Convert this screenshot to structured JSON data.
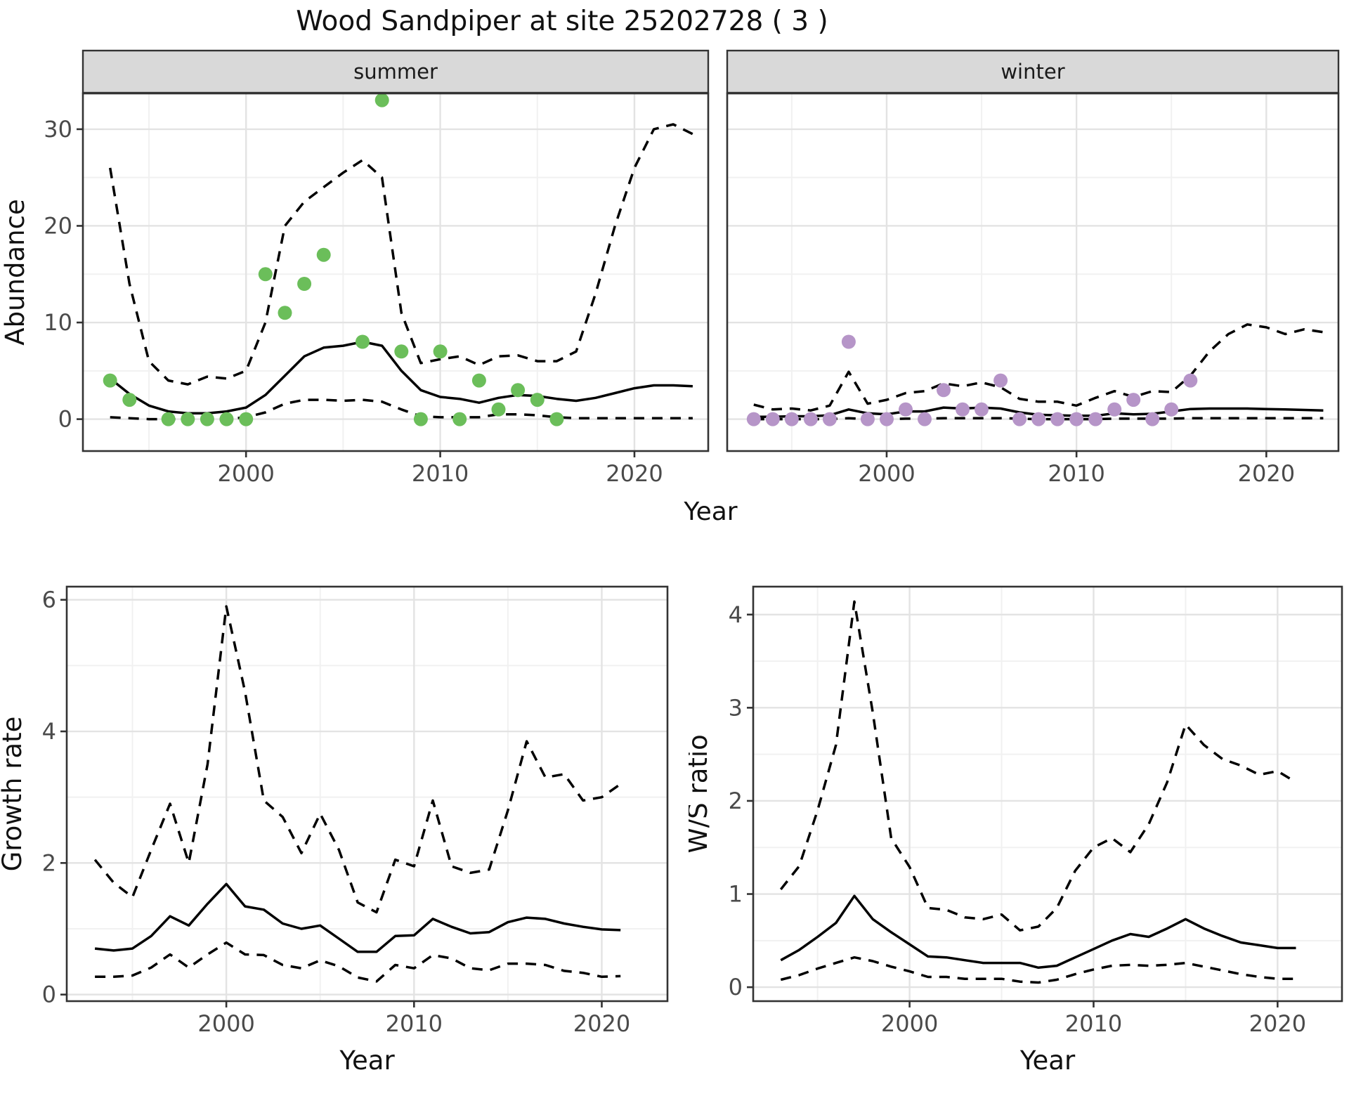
{
  "title": "Wood Sandpiper at site 25202728 ( 3 )",
  "labels": {
    "top_xlabel": "Year"
  },
  "colors": {
    "summer_point": "#6BBE5A",
    "winter_point": "#B695C8",
    "line": "#000000",
    "grid_major": "#E3E3E3",
    "grid_minor": "#F1F1F1",
    "strip_bg": "#D9D9D9",
    "panel_border": "#333333",
    "tick_text": "#4A4A4A",
    "axis_title": "#111111"
  },
  "chart_data": [
    {
      "id": "abundance_summer",
      "type": "line",
      "facet_label": "summer",
      "ylabel": "Abundance",
      "xlabel": null,
      "xlim": [
        1991.6,
        2023.8
      ],
      "ylim": [
        -3.3,
        33.7
      ],
      "x_ticks": [
        2000,
        2010,
        2020
      ],
      "x_minor": [
        1995,
        2005,
        2015
      ],
      "y_ticks": [
        0,
        10,
        20,
        30
      ],
      "y_minor": [
        5,
        15,
        25
      ],
      "show_y_tick_labels": true,
      "legend": "none",
      "series": {
        "fit": {
          "years": [
            1993,
            1994,
            1995,
            1996,
            1997,
            1998,
            1999,
            2000,
            2001,
            2002,
            2003,
            2004,
            2005,
            2006,
            2007,
            2008,
            2009,
            2010,
            2011,
            2012,
            2013,
            2014,
            2015,
            2016,
            2017,
            2018,
            2019,
            2020,
            2021,
            2022,
            2023
          ],
          "values": [
            4.2,
            2.6,
            1.4,
            0.8,
            0.6,
            0.6,
            0.8,
            1.2,
            2.5,
            4.5,
            6.5,
            7.4,
            7.6,
            8.0,
            7.6,
            5.0,
            3.0,
            2.3,
            2.1,
            1.7,
            2.2,
            2.5,
            2.4,
            2.1,
            1.9,
            2.2,
            2.7,
            3.2,
            3.5,
            3.5,
            3.4
          ]
        },
        "ci_upper": {
          "years": [
            1993,
            1994,
            1995,
            1996,
            1997,
            1998,
            1999,
            2000,
            2001,
            2002,
            2003,
            2004,
            2005,
            2006,
            2007,
            2008,
            2009,
            2010,
            2011,
            2012,
            2013,
            2014,
            2015,
            2016,
            2017,
            2018,
            2019,
            2020,
            2021,
            2022,
            2023
          ],
          "values": [
            26,
            14,
            6,
            4,
            3.6,
            4.4,
            4.2,
            5,
            10,
            20,
            22.5,
            24,
            25.5,
            26.8,
            25,
            11,
            5.8,
            6.2,
            6.5,
            5.6,
            6.5,
            6.6,
            6.0,
            6.0,
            7.0,
            13,
            20,
            26,
            30,
            30.5,
            29.5
          ]
        },
        "ci_lower": {
          "years": [
            1993,
            1994,
            1995,
            1996,
            1997,
            1998,
            1999,
            2000,
            2001,
            2002,
            2003,
            2004,
            2005,
            2006,
            2007,
            2008,
            2009,
            2010,
            2011,
            2012,
            2013,
            2014,
            2015,
            2016,
            2017,
            2018,
            2019,
            2020,
            2021,
            2022,
            2023
          ],
          "values": [
            0.2,
            0.1,
            0,
            0,
            0,
            0,
            0,
            0.2,
            0.7,
            1.6,
            2.0,
            2.0,
            1.9,
            2.0,
            1.8,
            1.0,
            0.3,
            0.2,
            0.2,
            0.2,
            0.5,
            0.5,
            0.4,
            0.2,
            0.1,
            0.1,
            0.1,
            0.1,
            0.1,
            0.1,
            0.1
          ]
        }
      },
      "points": {
        "color_key": "summer_point",
        "years": [
          1993,
          1994,
          1996,
          1997,
          1998,
          1999,
          2000,
          2001,
          2002,
          2003,
          2004,
          2006,
          2007,
          2008,
          2009,
          2010,
          2011,
          2012,
          2013,
          2014,
          2015,
          2016
        ],
        "values": [
          4,
          2,
          0,
          0,
          0,
          0,
          0,
          15,
          11,
          14,
          17,
          8,
          33,
          7,
          0,
          7,
          0,
          4,
          1,
          3,
          2,
          0
        ]
      }
    },
    {
      "id": "abundance_winter",
      "type": "line",
      "facet_label": "winter",
      "ylabel": null,
      "xlabel": null,
      "xlim": [
        1991.6,
        2023.8
      ],
      "ylim": [
        -3.3,
        33.7
      ],
      "x_ticks": [
        2000,
        2010,
        2020
      ],
      "x_minor": [
        1995,
        2005,
        2015
      ],
      "y_ticks": [
        0,
        10,
        20,
        30
      ],
      "y_minor": [
        5,
        15,
        25
      ],
      "show_y_tick_labels": false,
      "legend": "none",
      "series": {
        "fit": {
          "years": [
            1993,
            1994,
            1995,
            1996,
            1997,
            1998,
            1999,
            2000,
            2001,
            2002,
            2003,
            2004,
            2005,
            2006,
            2007,
            2008,
            2009,
            2010,
            2011,
            2012,
            2013,
            2014,
            2015,
            2016,
            2017,
            2018,
            2019,
            2020,
            2021,
            2022,
            2023
          ],
          "values": [
            0.25,
            0.25,
            0.3,
            0.3,
            0.4,
            1.0,
            0.6,
            0.5,
            0.8,
            0.8,
            1.2,
            1.1,
            1.2,
            1.1,
            0.7,
            0.45,
            0.4,
            0.35,
            0.35,
            0.6,
            0.5,
            0.55,
            0.8,
            1.05,
            1.1,
            1.1,
            1.1,
            1.05,
            1.0,
            0.95,
            0.9
          ]
        },
        "ci_upper": {
          "years": [
            1993,
            1994,
            1995,
            1996,
            1997,
            1998,
            1999,
            2000,
            2001,
            2002,
            2003,
            2004,
            2005,
            2006,
            2007,
            2008,
            2009,
            2010,
            2011,
            2012,
            2013,
            2014,
            2015,
            2016,
            2017,
            2018,
            2019,
            2020,
            2021,
            2022,
            2023
          ],
          "values": [
            1.5,
            1.0,
            1.1,
            0.9,
            1.4,
            4.9,
            1.6,
            2.0,
            2.7,
            2.9,
            3.7,
            3.4,
            3.8,
            3.3,
            2.1,
            1.8,
            1.8,
            1.4,
            2.2,
            2.9,
            2.3,
            2.9,
            2.8,
            4.5,
            7.0,
            8.8,
            9.8,
            9.5,
            8.8,
            9.3,
            9.0
          ]
        },
        "ci_lower": {
          "years": [
            1993,
            1994,
            1995,
            1996,
            1997,
            1998,
            1999,
            2000,
            2001,
            2002,
            2003,
            2004,
            2005,
            2006,
            2007,
            2008,
            2009,
            2010,
            2011,
            2012,
            2013,
            2014,
            2015,
            2016,
            2017,
            2018,
            2019,
            2020,
            2021,
            2022,
            2023
          ],
          "values": [
            0,
            0,
            0,
            0,
            0,
            0.1,
            0,
            0,
            0.05,
            0.05,
            0.1,
            0.1,
            0.1,
            0.1,
            0.05,
            0,
            0,
            0,
            0,
            0.05,
            0.05,
            0.05,
            0.05,
            0.1,
            0.1,
            0.1,
            0.1,
            0.1,
            0.1,
            0.1,
            0.1
          ]
        }
      },
      "points": {
        "color_key": "winter_point",
        "years": [
          1993,
          1994,
          1995,
          1996,
          1997,
          1998,
          1999,
          2000,
          2001,
          2002,
          2003,
          2004,
          2005,
          2006,
          2007,
          2008,
          2009,
          2010,
          2011,
          2012,
          2013,
          2014,
          2015,
          2016
        ],
        "values": [
          0,
          0,
          0,
          0,
          0,
          8,
          0,
          0,
          1,
          0,
          3,
          1,
          1,
          4,
          0,
          0,
          0,
          0,
          0,
          1,
          2,
          0,
          1,
          4
        ]
      }
    },
    {
      "id": "growth_rate",
      "type": "line",
      "facet_label": null,
      "ylabel": "Growth rate",
      "xlabel": "Year",
      "xlim": [
        1991.5,
        2023.5
      ],
      "ylim": [
        -0.1,
        6.2
      ],
      "x_ticks": [
        2000,
        2010,
        2020
      ],
      "x_minor": [
        1995,
        2005,
        2015
      ],
      "y_ticks": [
        0,
        2,
        4,
        6
      ],
      "y_minor": [
        1,
        3,
        5
      ],
      "show_y_tick_labels": true,
      "legend": "none",
      "series": {
        "fit": {
          "years": [
            1993,
            1994,
            1995,
            1996,
            1997,
            1998,
            1999,
            2000,
            2001,
            2002,
            2003,
            2004,
            2005,
            2006,
            2007,
            2008,
            2009,
            2010,
            2011,
            2012,
            2013,
            2014,
            2015,
            2016,
            2017,
            2018,
            2019,
            2020,
            2021
          ],
          "values": [
            0.7,
            0.67,
            0.7,
            0.89,
            1.19,
            1.05,
            1.38,
            1.68,
            1.34,
            1.29,
            1.08,
            1.0,
            1.05,
            0.85,
            0.65,
            0.65,
            0.89,
            0.9,
            1.15,
            1.03,
            0.93,
            0.95,
            1.1,
            1.17,
            1.15,
            1.08,
            1.03,
            0.99,
            0.98
          ]
        },
        "ci_upper": {
          "years": [
            1993,
            1994,
            1995,
            1996,
            1997,
            1998,
            1999,
            2000,
            2001,
            2002,
            2003,
            2004,
            2005,
            2006,
            2007,
            2008,
            2009,
            2010,
            2011,
            2012,
            2013,
            2014,
            2015,
            2016,
            2017,
            2018,
            2019,
            2020,
            2021
          ],
          "values": [
            2.05,
            1.7,
            1.48,
            2.2,
            2.9,
            2.0,
            3.5,
            5.9,
            4.6,
            2.95,
            2.7,
            2.15,
            2.75,
            2.2,
            1.4,
            1.25,
            2.05,
            1.95,
            2.95,
            1.95,
            1.85,
            1.9,
            2.8,
            3.85,
            3.3,
            3.35,
            2.95,
            3.0,
            3.2
          ]
        },
        "ci_lower": {
          "years": [
            1993,
            1994,
            1995,
            1996,
            1997,
            1998,
            1999,
            2000,
            2001,
            2002,
            2003,
            2004,
            2005,
            2006,
            2007,
            2008,
            2009,
            2010,
            2011,
            2012,
            2013,
            2014,
            2015,
            2016,
            2017,
            2018,
            2019,
            2020,
            2021
          ],
          "values": [
            0.27,
            0.27,
            0.29,
            0.41,
            0.61,
            0.41,
            0.61,
            0.79,
            0.61,
            0.6,
            0.45,
            0.4,
            0.52,
            0.43,
            0.26,
            0.2,
            0.45,
            0.4,
            0.6,
            0.55,
            0.4,
            0.37,
            0.47,
            0.47,
            0.45,
            0.36,
            0.33,
            0.27,
            0.28
          ]
        }
      },
      "points": null
    },
    {
      "id": "ws_ratio",
      "type": "line",
      "facet_label": null,
      "ylabel": "W/S ratio",
      "xlabel": "Year",
      "xlim": [
        1991.5,
        2023.5
      ],
      "ylim": [
        -0.15,
        4.3
      ],
      "x_ticks": [
        2000,
        2010,
        2020
      ],
      "x_minor": [
        1995,
        2005,
        2015
      ],
      "y_ticks": [
        0,
        1,
        2,
        3,
        4
      ],
      "y_minor": [
        0.5,
        1.5,
        2.5,
        3.5
      ],
      "show_y_tick_labels": true,
      "legend": "none",
      "series": {
        "fit": {
          "years": [
            1993,
            1994,
            1995,
            1996,
            1997,
            1998,
            1999,
            2000,
            2001,
            2002,
            2003,
            2004,
            2005,
            2006,
            2007,
            2008,
            2009,
            2010,
            2011,
            2012,
            2013,
            2014,
            2015,
            2016,
            2017,
            2018,
            2019,
            2020,
            2021
          ],
          "values": [
            0.29,
            0.4,
            0.54,
            0.69,
            0.98,
            0.73,
            0.59,
            0.46,
            0.33,
            0.32,
            0.29,
            0.26,
            0.26,
            0.26,
            0.21,
            0.23,
            0.32,
            0.41,
            0.5,
            0.57,
            0.54,
            0.63,
            0.73,
            0.63,
            0.55,
            0.48,
            0.45,
            0.42,
            0.42
          ]
        },
        "ci_upper": {
          "years": [
            1993,
            1994,
            1995,
            1996,
            1997,
            1998,
            1999,
            2000,
            2001,
            2002,
            2003,
            2004,
            2005,
            2006,
            2007,
            2008,
            2009,
            2010,
            2011,
            2012,
            2013,
            2014,
            2015,
            2016,
            2017,
            2018,
            2019,
            2020,
            2021
          ],
          "values": [
            1.05,
            1.3,
            1.9,
            2.6,
            4.14,
            2.95,
            1.6,
            1.29,
            0.85,
            0.83,
            0.75,
            0.73,
            0.78,
            0.61,
            0.65,
            0.85,
            1.25,
            1.5,
            1.6,
            1.45,
            1.75,
            2.2,
            2.82,
            2.6,
            2.45,
            2.38,
            2.28,
            2.32,
            2.2
          ]
        },
        "ci_lower": {
          "years": [
            1993,
            1994,
            1995,
            1996,
            1997,
            1998,
            1999,
            2000,
            2001,
            2002,
            2003,
            2004,
            2005,
            2006,
            2007,
            2008,
            2009,
            2010,
            2011,
            2012,
            2013,
            2014,
            2015,
            2016,
            2017,
            2018,
            2019,
            2020,
            2021
          ],
          "values": [
            0.08,
            0.13,
            0.2,
            0.26,
            0.32,
            0.28,
            0.22,
            0.17,
            0.11,
            0.11,
            0.09,
            0.09,
            0.09,
            0.06,
            0.05,
            0.08,
            0.14,
            0.19,
            0.23,
            0.24,
            0.23,
            0.24,
            0.26,
            0.22,
            0.18,
            0.14,
            0.11,
            0.09,
            0.09
          ]
        }
      },
      "points": null
    }
  ]
}
